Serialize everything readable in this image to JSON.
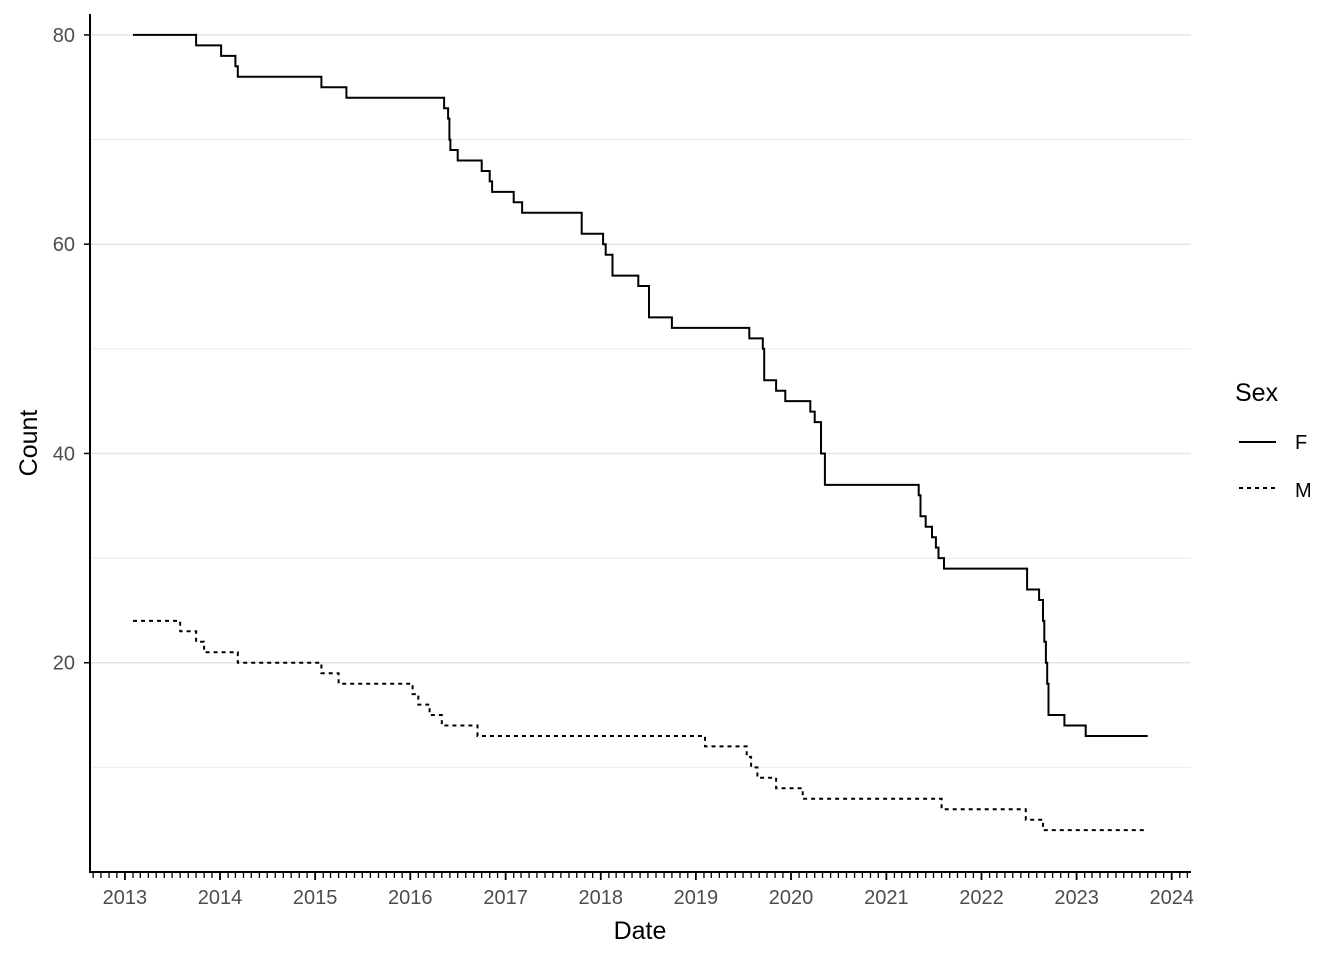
{
  "chart_data": {
    "type": "line",
    "step": true,
    "xlabel": "Date",
    "ylabel": "Count",
    "x_tick_labels": [
      "2013",
      "2014",
      "2015",
      "2016",
      "2017",
      "2018",
      "2019",
      "2020",
      "2021",
      "2022",
      "2023",
      "2024"
    ],
    "y_tick_labels": [
      "20",
      "40",
      "60",
      "80"
    ],
    "y_ticks": [
      20,
      40,
      60,
      80
    ],
    "y_minor_ticks": [
      10,
      30,
      50,
      70
    ],
    "ylim": [
      0,
      82
    ],
    "xlim": [
      "2012-08-20",
      "2024-03-15"
    ],
    "minor_x_ticks": "monthly",
    "grid": "horizontal major and minor",
    "legend": {
      "title": "Sex",
      "position": "right"
    },
    "series": [
      {
        "name": "F",
        "linestyle": "solid",
        "points": [
          [
            "2013-02-01",
            80
          ],
          [
            "2013-10-01",
            79
          ],
          [
            "2014-01-05",
            78
          ],
          [
            "2014-03-01",
            77
          ],
          [
            "2014-03-10",
            76
          ],
          [
            "2015-01-25",
            75
          ],
          [
            "2015-05-01",
            74
          ],
          [
            "2016-05-10",
            73
          ],
          [
            "2016-05-25",
            72
          ],
          [
            "2016-05-30",
            70
          ],
          [
            "2016-06-03",
            69
          ],
          [
            "2016-07-01",
            68
          ],
          [
            "2016-10-01",
            67
          ],
          [
            "2016-11-01",
            66
          ],
          [
            "2016-11-10",
            65
          ],
          [
            "2017-02-01",
            64
          ],
          [
            "2017-03-05",
            63
          ],
          [
            "2017-10-20",
            61
          ],
          [
            "2018-01-10",
            60
          ],
          [
            "2018-01-20",
            59
          ],
          [
            "2018-02-15",
            57
          ],
          [
            "2018-05-25",
            56
          ],
          [
            "2018-07-05",
            53
          ],
          [
            "2018-10-01",
            52
          ],
          [
            "2019-07-25",
            51
          ],
          [
            "2019-09-15",
            50
          ],
          [
            "2019-09-20",
            47
          ],
          [
            "2019-11-05",
            46
          ],
          [
            "2019-12-10",
            45
          ],
          [
            "2020-03-15",
            44
          ],
          [
            "2020-04-01",
            43
          ],
          [
            "2020-04-25",
            40
          ],
          [
            "2020-05-10",
            37
          ],
          [
            "2021-05-05",
            36
          ],
          [
            "2021-05-12",
            34
          ],
          [
            "2021-06-01",
            33
          ],
          [
            "2021-06-25",
            32
          ],
          [
            "2021-07-10",
            31
          ],
          [
            "2021-07-20",
            30
          ],
          [
            "2021-08-10",
            29
          ],
          [
            "2022-06-25",
            27
          ],
          [
            "2022-08-10",
            26
          ],
          [
            "2022-08-25",
            24
          ],
          [
            "2022-08-30",
            22
          ],
          [
            "2022-09-05",
            20
          ],
          [
            "2022-09-10",
            18
          ],
          [
            "2022-09-15",
            15
          ],
          [
            "2022-11-15",
            14
          ],
          [
            "2023-02-05",
            13
          ],
          [
            "2023-10-01",
            13
          ]
        ]
      },
      {
        "name": "M",
        "linestyle": "dashed",
        "points": [
          [
            "2013-02-01",
            24
          ],
          [
            "2013-08-01",
            23
          ],
          [
            "2013-10-01",
            22
          ],
          [
            "2013-11-01",
            21
          ],
          [
            "2014-03-10",
            20
          ],
          [
            "2015-01-25",
            19
          ],
          [
            "2015-04-01",
            18
          ],
          [
            "2016-01-10",
            17
          ],
          [
            "2016-02-01",
            16
          ],
          [
            "2016-03-15",
            15
          ],
          [
            "2016-05-01",
            14
          ],
          [
            "2016-09-15",
            13
          ],
          [
            "2019-02-05",
            12
          ],
          [
            "2019-07-15",
            11
          ],
          [
            "2019-08-01",
            10
          ],
          [
            "2019-08-25",
            9
          ],
          [
            "2019-11-05",
            8
          ],
          [
            "2020-02-15",
            7
          ],
          [
            "2021-08-01",
            6
          ],
          [
            "2022-06-20",
            5
          ],
          [
            "2022-08-25",
            4
          ],
          [
            "2023-10-01",
            4
          ]
        ]
      }
    ]
  }
}
